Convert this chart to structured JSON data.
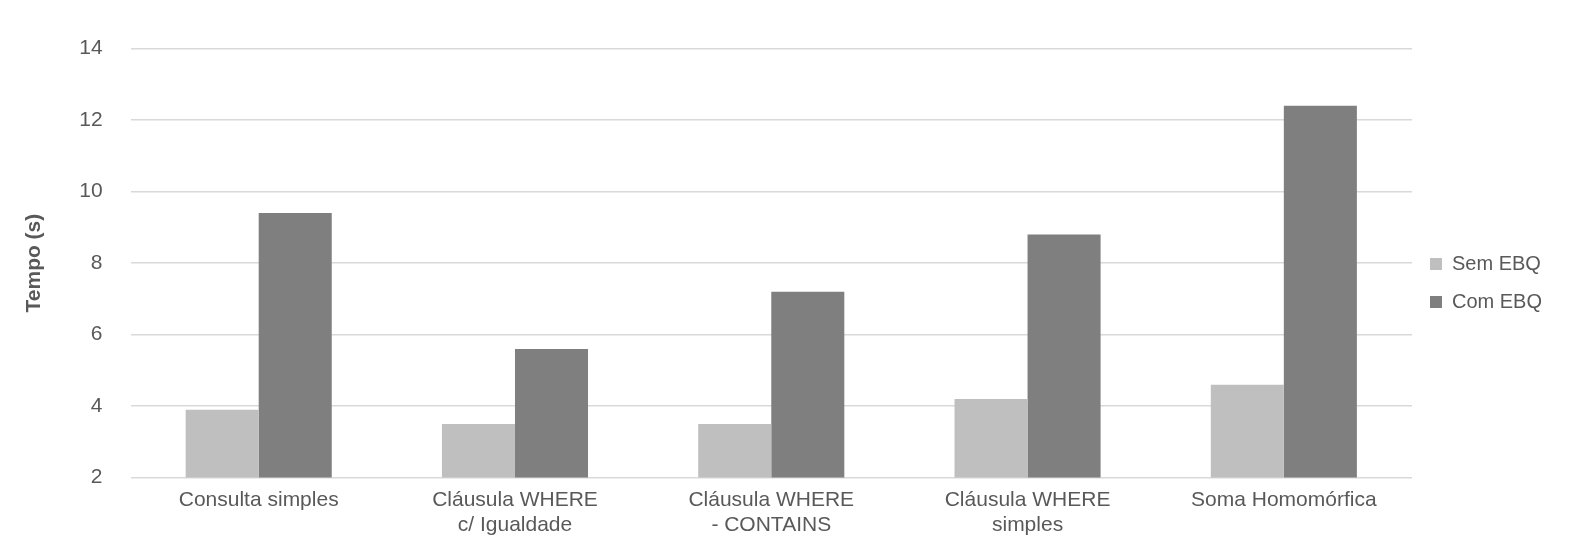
{
  "chart_data": {
    "type": "bar",
    "ylabel": "Tempo (s)",
    "categories": [
      "Consulta simples",
      "Cláusula WHERE c/ Igualdade",
      "Cláusula WHERE - CONTAINS",
      "Cláusula WHERE simples",
      "Soma Homomórfica"
    ],
    "series": [
      {
        "name": "Sem EBQ",
        "color": "#bfbfbf",
        "values": [
          3.9,
          3.5,
          3.5,
          4.2,
          4.6
        ]
      },
      {
        "name": "Com EBQ",
        "color": "#7f7f7f",
        "values": [
          9.4,
          5.6,
          7.2,
          8.8,
          12.4
        ]
      }
    ],
    "ylim": [
      2,
      14
    ],
    "yticks": [
      2,
      4,
      6,
      8,
      10,
      12,
      14
    ],
    "grid": "y",
    "legend": "right"
  }
}
